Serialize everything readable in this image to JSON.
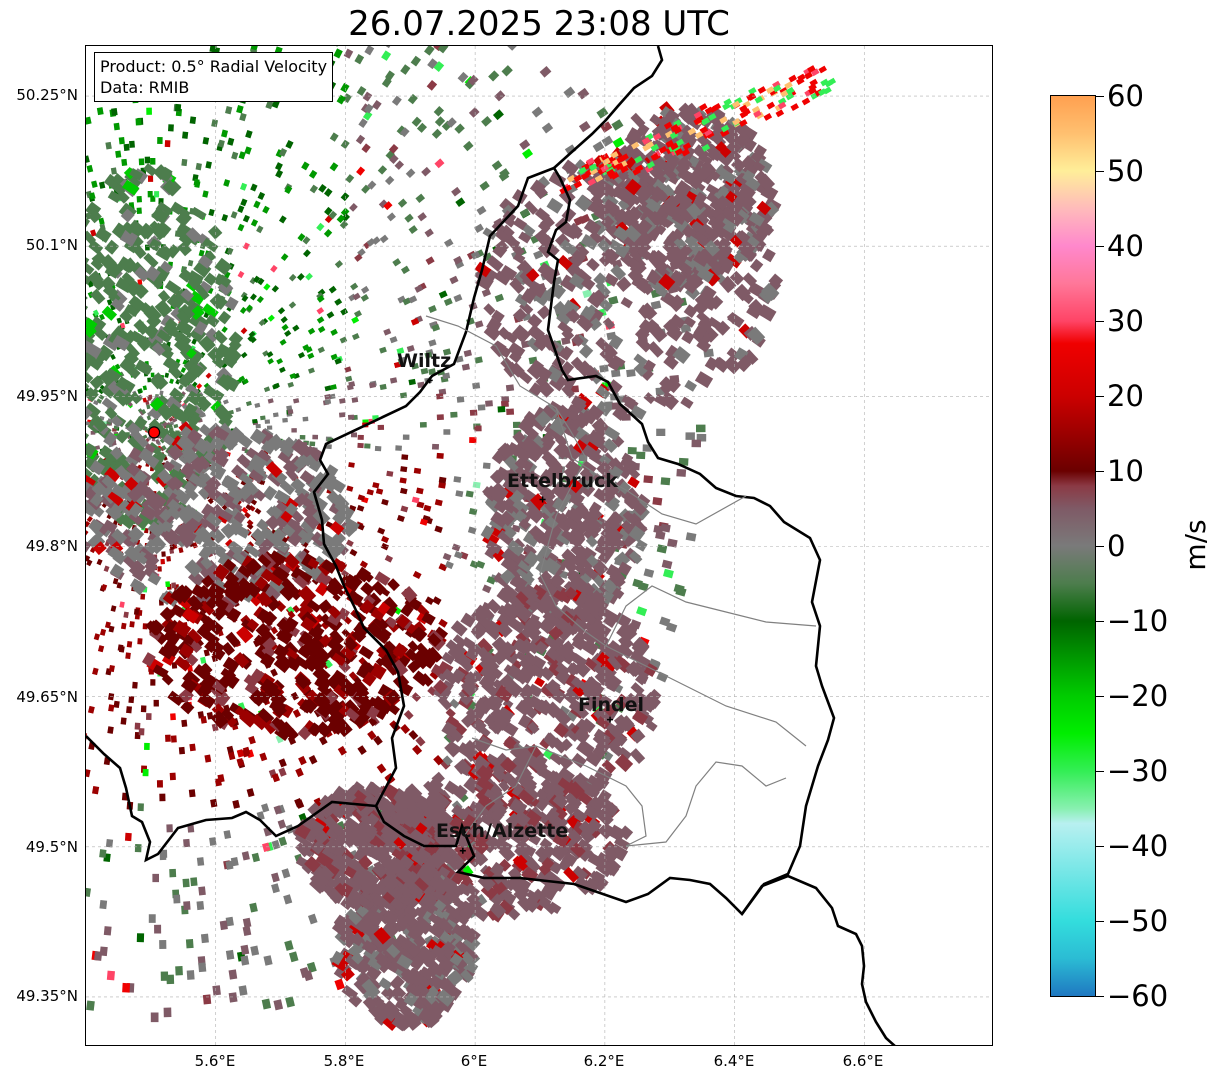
{
  "title": "26.07.2025 23:08 UTC",
  "info_box": {
    "product": "Product: 0.5° Radial Velocity",
    "source": "Data: RMIB"
  },
  "lat_labels": [
    "50.25°N",
    "50.1°N",
    "49.95°N",
    "49.8°N",
    "49.65°N",
    "49.5°N",
    "49.35°N"
  ],
  "lon_labels": [
    "5.6°E",
    "5.8°E",
    "6°E",
    "6.2°E",
    "6.4°E",
    "6.6°E"
  ],
  "cities": [
    {
      "name": "Wiltz",
      "lon": 5.93,
      "lat": 49.966
    },
    {
      "name": "Ettelbruck",
      "lon": 6.104,
      "lat": 49.847
    },
    {
      "name": "Findel",
      "lon": 6.208,
      "lat": 49.627
    },
    {
      "name": "Esch/Alzette",
      "lon": 5.981,
      "lat": 49.496
    }
  ],
  "radar_site": {
    "lon": 5.505,
    "lat": 49.914,
    "color": "#ff0000"
  },
  "colorbar": {
    "unit": "m/s",
    "min": -60,
    "max": 60,
    "tick_labels": [
      "60",
      "50",
      "40",
      "30",
      "20",
      "10",
      "0",
      "−10",
      "−20",
      "−30",
      "−40",
      "−50",
      "−60"
    ],
    "colors": {
      "-60": "#1f78c1",
      "-55": "#2bbcd4",
      "-50": "#33dddd",
      "-45": "#66e4e4",
      "-40": "#99ecec",
      "-37": "#b8f0f0",
      "-35": "#88f0b0",
      "-30": "#33ee55",
      "-25": "#00ee00",
      "-20": "#00cc00",
      "-15": "#009900",
      "-10": "#006400",
      "-5": "#4d7d4d",
      "0": "#7a7a7a",
      "5": "#7f5a66",
      "8": "#8b3a45",
      "10": "#6b0000",
      "15": "#9c0000",
      "20": "#cc0000",
      "27": "#f00000",
      "30": "#ff4466",
      "35": "#ff7799",
      "40": "#ff88cc",
      "45": "#ffbbbb",
      "50": "#ffee99",
      "55": "#ffc070",
      "60": "#ffa050"
    }
  }
}
